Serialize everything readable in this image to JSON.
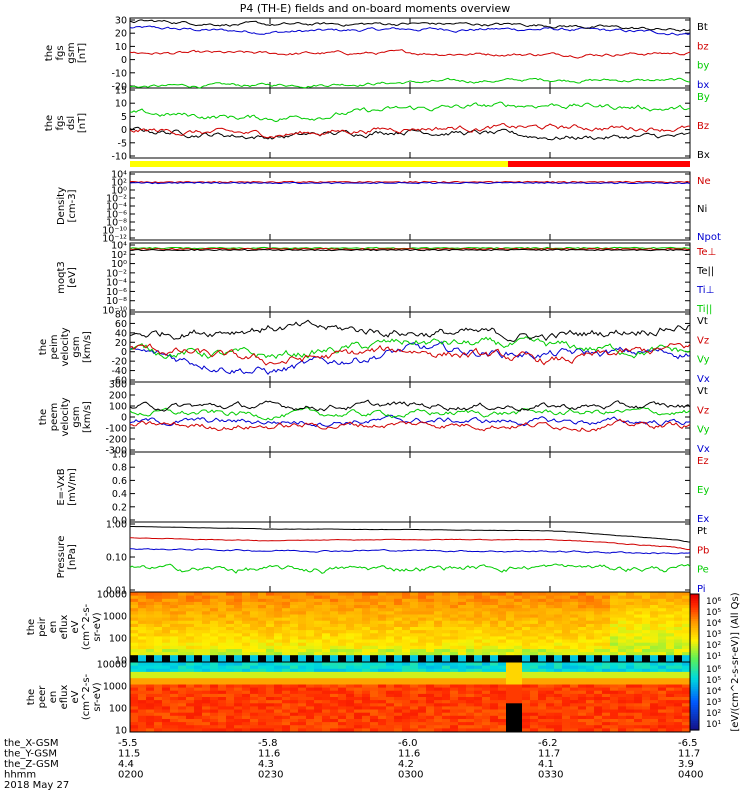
{
  "title": "P4 (TH-E) fields and on-board moments overview",
  "panels": [
    {
      "id": "fgs_gsm",
      "ylabel": [
        "the",
        "fgs",
        "gsm",
        "[nT]"
      ],
      "ylim": [
        -20,
        30
      ],
      "ticks": [
        "30",
        "20",
        "10",
        "0",
        "-10",
        "-20"
      ],
      "legend": [
        {
          "text": "Bt",
          "color": "#000000"
        },
        {
          "text": "bz",
          "color": "#d00000"
        },
        {
          "text": "by",
          "color": "#00cc00"
        },
        {
          "text": "bx",
          "color": "#0000d0"
        }
      ]
    },
    {
      "id": "fgs_dsl",
      "ylabel": [
        "the",
        "fgs",
        "dsl",
        "[nT]"
      ],
      "ylim": [
        -15,
        15
      ],
      "ticks": [
        "15",
        "10",
        "5",
        "0",
        "-5",
        "-10"
      ],
      "legend": [
        {
          "text": "By",
          "color": "#00cc00"
        },
        {
          "text": "Bz",
          "color": "#d00000"
        },
        {
          "text": "Bx",
          "color": "#000000"
        }
      ]
    },
    {
      "id": "density",
      "ylabel": [
        "Density",
        "[cm-3]"
      ],
      "log": true,
      "ticks": [
        "10⁴",
        "10²",
        "10⁰",
        "10⁻²",
        "10⁻⁴",
        "10⁻⁶",
        "10⁻⁸",
        "10⁻¹⁰",
        "10⁻¹²"
      ],
      "legend": [
        {
          "text": "Ne",
          "color": "#d00000"
        },
        {
          "text": "Ni",
          "color": "#000000"
        },
        {
          "text": "Npot",
          "color": "#0000d0"
        }
      ]
    },
    {
      "id": "temperature",
      "ylabel": [
        "moqt3",
        "[eV]"
      ],
      "log": true,
      "ticks": [
        "10⁴",
        "10²",
        "10⁰",
        "10⁻²",
        "10⁻⁴",
        "10⁻⁶",
        "10⁻⁸",
        "10⁻¹⁰"
      ],
      "legend": [
        {
          "text": "Te⊥",
          "color": "#d00000"
        },
        {
          "text": "Te||",
          "color": "#000000"
        },
        {
          "text": "Ti⊥",
          "color": "#0000d0"
        },
        {
          "text": "Ti||",
          "color": "#00cc00"
        }
      ]
    },
    {
      "id": "peim_velocity",
      "ylabel": [
        "the",
        "peim",
        "velocity",
        "gsm",
        "[km/s]"
      ],
      "ylim": [
        -60,
        80
      ],
      "ticks": [
        "80",
        "60",
        "40",
        "20",
        "0",
        "-20",
        "-40",
        "-60"
      ],
      "legend": [
        {
          "text": "Vt",
          "color": "#000000"
        },
        {
          "text": "Vz",
          "color": "#d00000"
        },
        {
          "text": "Vy",
          "color": "#00cc00"
        },
        {
          "text": "Vx",
          "color": "#0000d0"
        }
      ]
    },
    {
      "id": "peem_velocity",
      "ylabel": [
        "the",
        "peem",
        "velocity",
        "gsm",
        "[km/s]"
      ],
      "ylim": [
        -300,
        300
      ],
      "ticks": [
        "300",
        "200",
        "100",
        "0",
        "-100",
        "-200",
        "-300"
      ],
      "legend": [
        {
          "text": "Vt",
          "color": "#000000"
        },
        {
          "text": "Vz",
          "color": "#d00000"
        },
        {
          "text": "Vy",
          "color": "#00cc00"
        },
        {
          "text": "Vx",
          "color": "#0000d0"
        }
      ]
    },
    {
      "id": "efield",
      "ylabel": [
        "E=-VxB",
        "[mV/m]"
      ],
      "ylim": [
        0,
        1
      ],
      "ticks": [
        "1.0",
        "0.8",
        "0.6",
        "0.4",
        "0.2",
        "0.0"
      ],
      "legend": [
        {
          "text": "Ez",
          "color": "#d00000"
        },
        {
          "text": "Ey",
          "color": "#00cc00"
        },
        {
          "text": "Ex",
          "color": "#0000d0"
        }
      ]
    },
    {
      "id": "pressure",
      "ylabel": [
        "Pressure",
        "[nPa]"
      ],
      "log": true,
      "ticks": [
        "1.00",
        "0.10",
        "0.01"
      ],
      "legend": [
        {
          "text": "Pt",
          "color": "#000000"
        },
        {
          "text": "Pb",
          "color": "#d00000"
        },
        {
          "text": "Pe",
          "color": "#00cc00"
        },
        {
          "text": "Pi",
          "color": "#0000d0"
        }
      ]
    },
    {
      "id": "peir_eflux",
      "ylabel": [
        "the",
        "peir",
        "en",
        "eflux",
        "eV",
        "(cm^2-s-",
        "sr-eV)"
      ],
      "log": true,
      "ticks": [
        "10000",
        "1000",
        "100",
        "10"
      ]
    },
    {
      "id": "peer_eflux",
      "ylabel": [
        "the",
        "peer",
        "en",
        "eflux",
        "eV",
        "(cm^2-s-",
        "sr-eV)"
      ],
      "log": true,
      "ticks": [
        "10000",
        "1000",
        "100",
        "10"
      ]
    }
  ],
  "colorbar": {
    "label": "[eV/(cm^2-s-sr-eV)] (All Qs)",
    "ticks_top": [
      "10⁶",
      "10⁵",
      "10⁴",
      "10³",
      "10²",
      "10¹"
    ],
    "ticks_bottom": [
      "10⁶",
      "10⁵",
      "10⁴",
      "10³",
      "10²",
      "10¹"
    ]
  },
  "x_axis": {
    "row_labels": [
      "the_X-GSM",
      "the_Y-GSM",
      "the_Z-GSM",
      "hhmm",
      "2018 May 27"
    ],
    "columns": [
      [
        "-5.5",
        "11.5",
        "4.4",
        "0200"
      ],
      [
        "-5.8",
        "11.6",
        "4.3",
        "0230"
      ],
      [
        "-6.0",
        "11.6",
        "4.2",
        "0300"
      ],
      [
        "-6.2",
        "11.7",
        "4.1",
        "0330"
      ],
      [
        "-6.5",
        "11.7",
        "3.9",
        "0400"
      ]
    ],
    "time_range": [
      "0200",
      "0400"
    ]
  },
  "mode_bar": {
    "colors": [
      "#ffff00",
      "#ff0000"
    ],
    "switch_time": "0321"
  },
  "chart_data": [
    {
      "type": "line",
      "title": "the fgs gsm [nT]",
      "x": [
        "0200",
        "0230",
        "0300",
        "0330",
        "0400"
      ],
      "ylim": [
        -20,
        30
      ],
      "series": [
        {
          "name": "Bt",
          "values": [
            28,
            25,
            26,
            25,
            21
          ]
        },
        {
          "name": "bz",
          "values": [
            5,
            4.5,
            5,
            4,
            5
          ]
        },
        {
          "name": "by",
          "values": [
            -19,
            -18,
            -16,
            -14,
            -15
          ]
        },
        {
          "name": "bx",
          "values": [
            23,
            20,
            22,
            22,
            19
          ]
        }
      ]
    },
    {
      "type": "line",
      "title": "the fgs dsl [nT]",
      "x": [
        "0200",
        "0230",
        "0300",
        "0330",
        "0400"
      ],
      "ylim": [
        -15,
        15
      ],
      "series": [
        {
          "name": "By",
          "values": [
            4,
            2,
            6,
            8,
            6
          ]
        },
        {
          "name": "Bz",
          "values": [
            -3,
            -5,
            -2,
            -2,
            -2
          ]
        },
        {
          "name": "Bx",
          "values": [
            -3,
            -6,
            -3,
            -6,
            -6
          ]
        }
      ]
    },
    {
      "type": "line",
      "title": "the peim velocity gsm [km/s]",
      "x": [
        "0200",
        "0230",
        "0300",
        "0330",
        "0400"
      ],
      "ylim": [
        -60,
        80
      ],
      "series": [
        {
          "name": "Vt",
          "values": [
            35,
            50,
            40,
            30,
            55
          ]
        },
        {
          "name": "Vz",
          "values": [
            10,
            -20,
            5,
            -20,
            10
          ]
        },
        {
          "name": "Vy",
          "values": [
            5,
            -10,
            20,
            10,
            0
          ]
        },
        {
          "name": "Vx",
          "values": [
            0,
            -40,
            5,
            -5,
            0
          ]
        }
      ]
    },
    {
      "type": "line",
      "title": "the peem velocity gsm [km/s]",
      "x": [
        "0200",
        "0230",
        "0300",
        "0330",
        "0400"
      ],
      "ylim": [
        -300,
        300
      ],
      "series": [
        {
          "name": "Vt",
          "values": [
            90,
            90,
            100,
            90,
            90
          ]
        },
        {
          "name": "Vz",
          "values": [
            -70,
            -80,
            -60,
            -70,
            -70
          ]
        },
        {
          "name": "Vy",
          "values": [
            40,
            20,
            30,
            40,
            40
          ]
        },
        {
          "name": "Vx",
          "values": [
            -40,
            -40,
            -30,
            -40,
            -40
          ]
        }
      ]
    },
    {
      "type": "line",
      "title": "Pressure [nPa]",
      "x": [
        "0200",
        "0230",
        "0300",
        "0330",
        "0400"
      ],
      "log": true,
      "ylim": [
        0.01,
        1.0
      ],
      "series": [
        {
          "name": "Pt",
          "values": [
            0.9,
            0.75,
            0.72,
            0.65,
            0.3
          ]
        },
        {
          "name": "Pb",
          "values": [
            0.4,
            0.32,
            0.35,
            0.35,
            0.18
          ]
        },
        {
          "name": "Pe",
          "values": [
            0.045,
            0.04,
            0.045,
            0.05,
            0.042
          ]
        },
        {
          "name": "Pi",
          "values": [
            0.18,
            0.16,
            0.16,
            0.15,
            0.13
          ]
        }
      ]
    }
  ]
}
